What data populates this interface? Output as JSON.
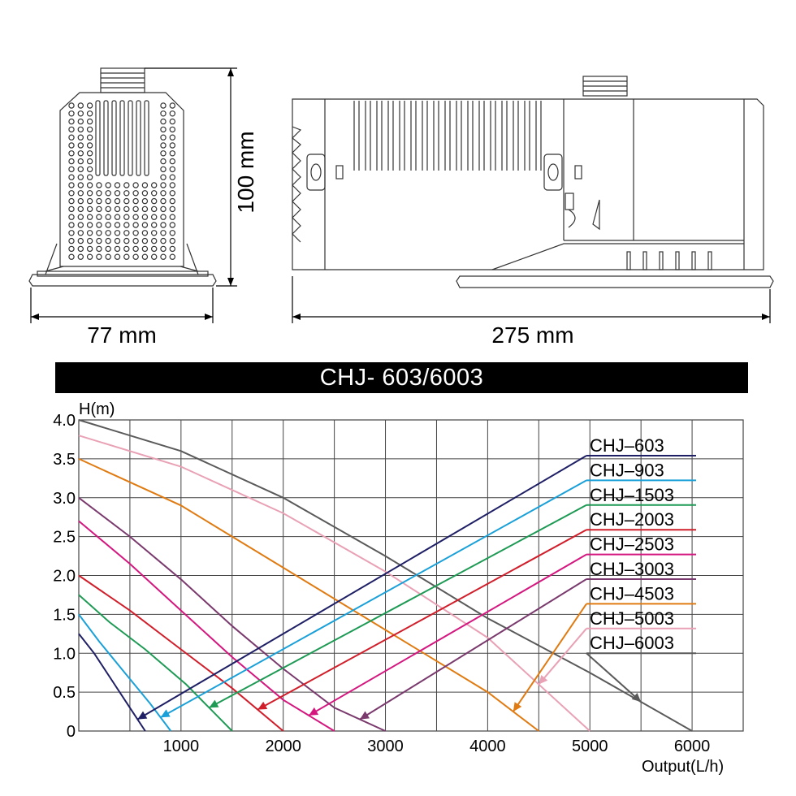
{
  "drawing": {
    "front_width_label": "77 mm",
    "height_label": "100 mm",
    "side_width_label": "275 mm"
  },
  "banner": {
    "title": "CHJ- 603/6003"
  },
  "chart_data": {
    "type": "line",
    "title": "CHJ- 603/6003",
    "ylabel": "H(m)",
    "xlabel": "Output(L/h)",
    "xlim": [
      0,
      6500
    ],
    "ylim": [
      0,
      4.0
    ],
    "x_ticks": [
      1000,
      2000,
      3000,
      4000,
      5000,
      6000
    ],
    "y_ticks": [
      "4.0",
      "3.5",
      "3.0",
      "2.5",
      "2.0",
      "1.5",
      "1.0",
      "0.5",
      "0"
    ],
    "grid": true,
    "series": [
      {
        "name": "CHJ–603",
        "color": "#1f1f66",
        "points": [
          [
            0,
            1.25
          ],
          [
            150,
            1.0
          ],
          [
            350,
            0.6
          ],
          [
            500,
            0.3
          ],
          [
            650,
            0
          ]
        ]
      },
      {
        "name": "CHJ–903",
        "color": "#1aa0d8",
        "points": [
          [
            0,
            1.5
          ],
          [
            200,
            1.15
          ],
          [
            450,
            0.75
          ],
          [
            700,
            0.35
          ],
          [
            900,
            0
          ]
        ]
      },
      {
        "name": "CHJ–1503",
        "color": "#1e9a55",
        "points": [
          [
            0,
            1.75
          ],
          [
            300,
            1.4
          ],
          [
            650,
            1.05
          ],
          [
            1050,
            0.6
          ],
          [
            1500,
            0
          ]
        ]
      },
      {
        "name": "CHJ–2003",
        "color": "#d01e2a",
        "points": [
          [
            0,
            2.0
          ],
          [
            500,
            1.55
          ],
          [
            1000,
            1.05
          ],
          [
            1500,
            0.55
          ],
          [
            2000,
            0
          ]
        ]
      },
      {
        "name": "CHJ–2503",
        "color": "#d4177f",
        "points": [
          [
            0,
            2.7
          ],
          [
            500,
            2.15
          ],
          [
            1000,
            1.55
          ],
          [
            1500,
            0.95
          ],
          [
            2000,
            0.4
          ],
          [
            2500,
            0
          ]
        ]
      },
      {
        "name": "CHJ–3003",
        "color": "#7a3a6e",
        "points": [
          [
            0,
            3.0
          ],
          [
            500,
            2.5
          ],
          [
            1000,
            1.95
          ],
          [
            1500,
            1.35
          ],
          [
            2000,
            0.8
          ],
          [
            2500,
            0.3
          ],
          [
            3000,
            0
          ]
        ]
      },
      {
        "name": "CHJ–4503",
        "color": "#e07b12",
        "points": [
          [
            0,
            3.5
          ],
          [
            1000,
            2.9
          ],
          [
            2000,
            2.1
          ],
          [
            3000,
            1.3
          ],
          [
            4000,
            0.5
          ],
          [
            4500,
            0
          ]
        ]
      },
      {
        "name": "CHJ–5003",
        "color": "#e9a1b5",
        "points": [
          [
            0,
            3.8
          ],
          [
            1000,
            3.4
          ],
          [
            2000,
            2.8
          ],
          [
            3000,
            2.05
          ],
          [
            4000,
            1.2
          ],
          [
            5000,
            0
          ]
        ]
      },
      {
        "name": "CHJ–6003",
        "color": "#5a5a5a",
        "points": [
          [
            0,
            4.0
          ],
          [
            1000,
            3.6
          ],
          [
            2000,
            3.0
          ],
          [
            3000,
            2.25
          ],
          [
            4000,
            1.45
          ],
          [
            5000,
            0.75
          ],
          [
            6000,
            0
          ]
        ]
      }
    ],
    "legend_position": "right"
  }
}
